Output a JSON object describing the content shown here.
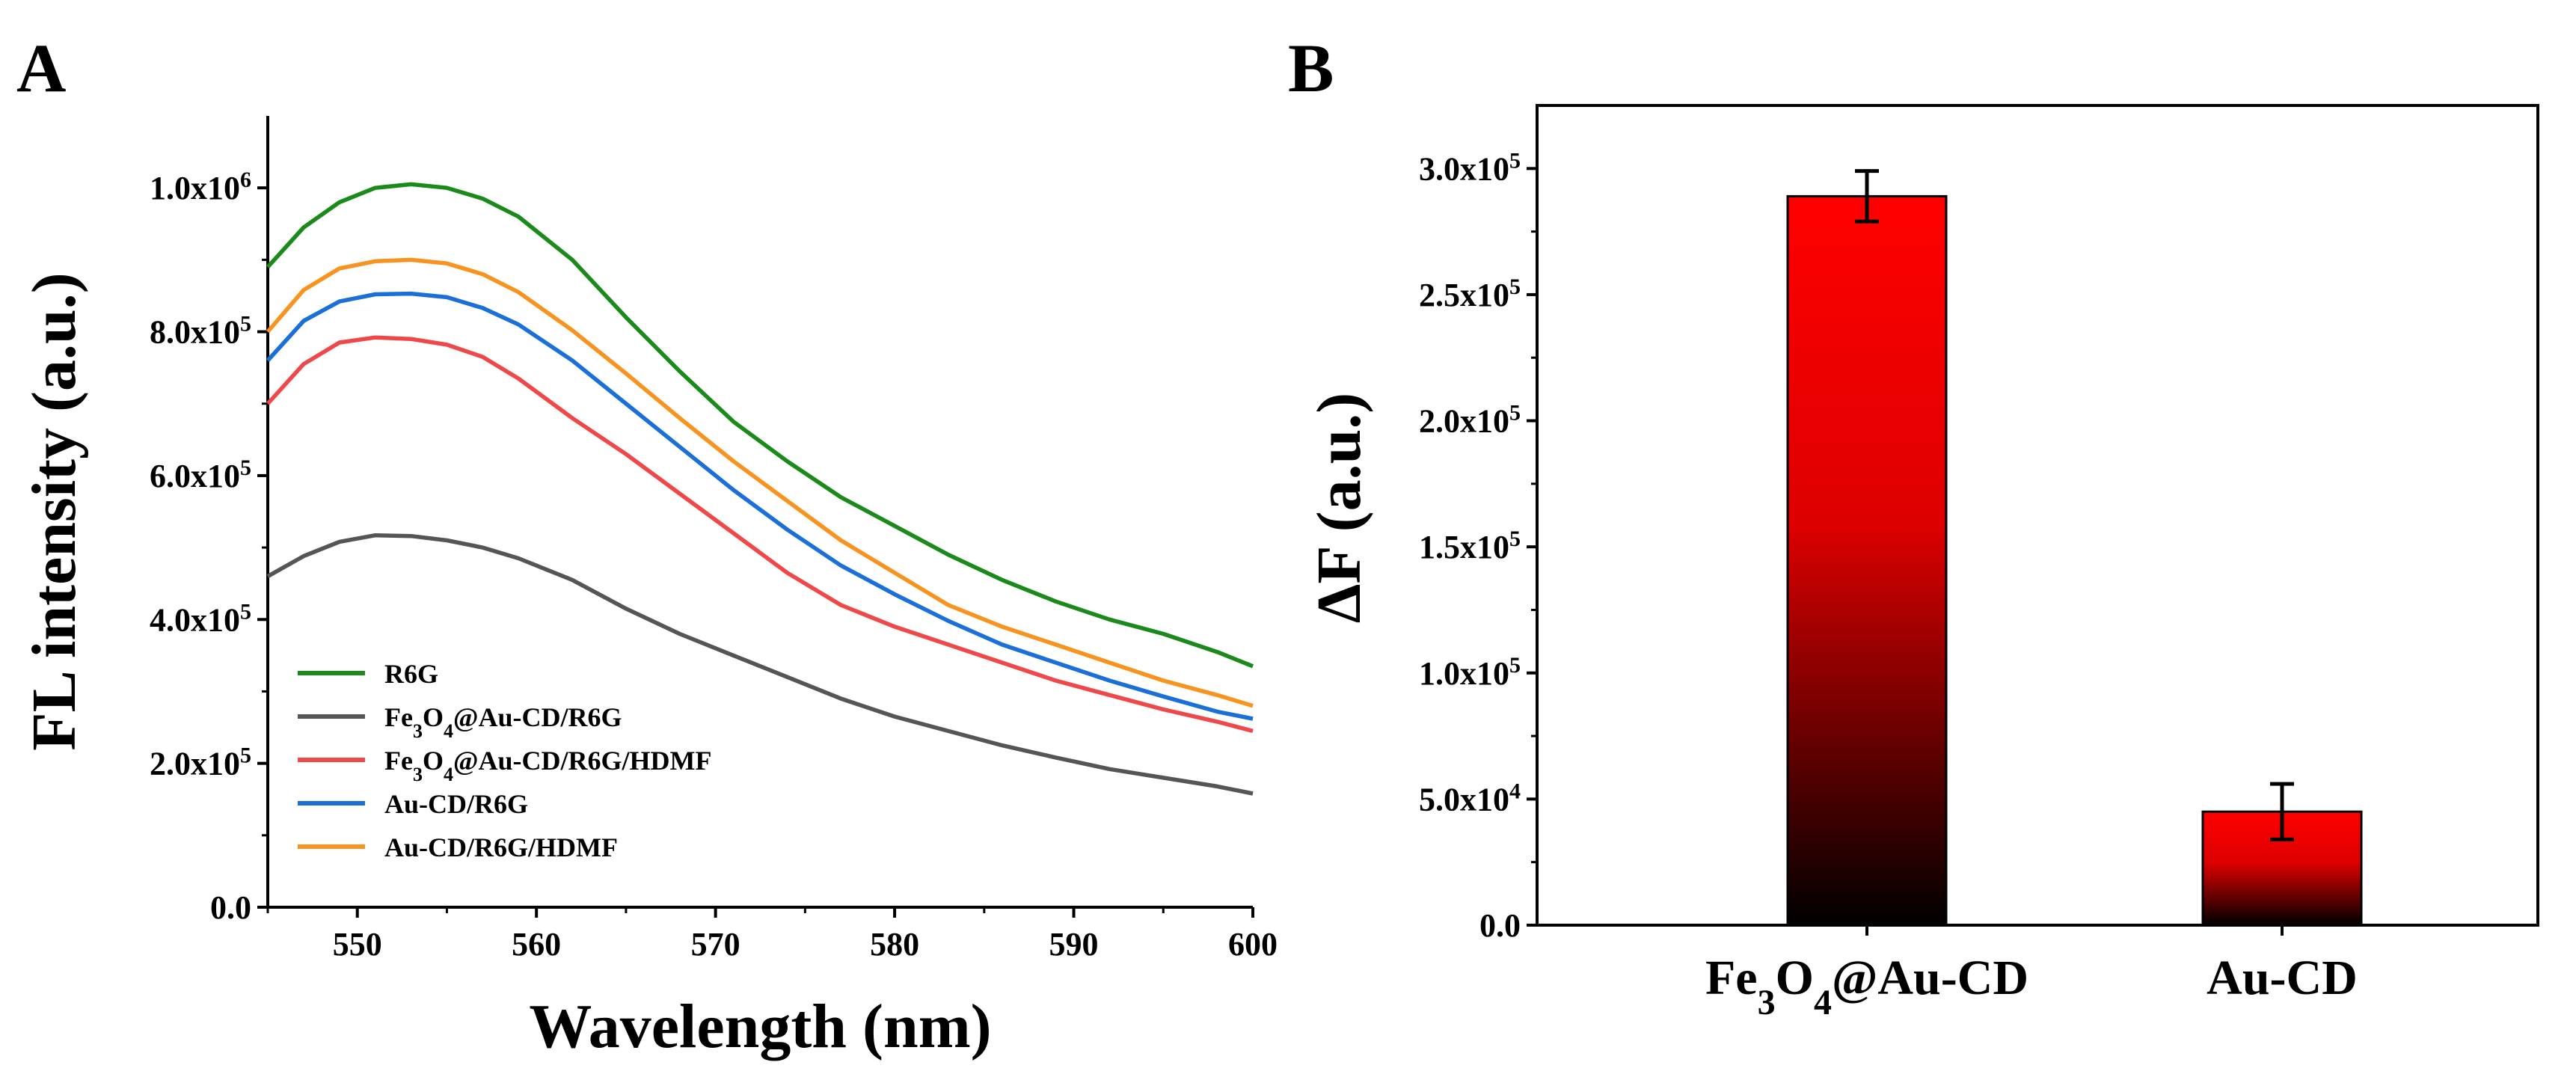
{
  "chart_data": [
    {
      "panel": "A",
      "type": "line",
      "xlabel": "Wavelength (nm)",
      "ylabel": "FL intensity (a.u.)",
      "xlim": [
        545,
        600
      ],
      "ylim": [
        0,
        1100000
      ],
      "xticks": [
        550,
        560,
        570,
        580,
        590,
        600
      ],
      "yticks": [
        {
          "value": 0,
          "mantissa": "0.0",
          "exp": ""
        },
        {
          "value": 200000,
          "mantissa": "2.0x10",
          "exp": "5"
        },
        {
          "value": 400000,
          "mantissa": "4.0x10",
          "exp": "5"
        },
        {
          "value": 600000,
          "mantissa": "6.0x10",
          "exp": "5"
        },
        {
          "value": 800000,
          "mantissa": "8.0x10",
          "exp": "5"
        },
        {
          "value": 1000000,
          "mantissa": "1.0x10",
          "exp": "6"
        }
      ],
      "legend_position": "bottom-left",
      "x": [
        545,
        547,
        549,
        551,
        553,
        555,
        557,
        559,
        562,
        565,
        568,
        571,
        574,
        577,
        580,
        583,
        586,
        589,
        592,
        595,
        598,
        600
      ],
      "series": [
        {
          "name": "R6G",
          "label_parts": [
            {
              "t": "R6G"
            }
          ],
          "color": "#1a8a1a",
          "values": [
            890000,
            945000,
            980000,
            1000000,
            1005000,
            1000000,
            985000,
            960000,
            900000,
            820000,
            745000,
            675000,
            620000,
            570000,
            530000,
            490000,
            455000,
            425000,
            400000,
            380000,
            355000,
            335000
          ]
        },
        {
          "name": "Fe3O4@Au-CD/R6G",
          "label_parts": [
            {
              "t": "Fe"
            },
            {
              "t": "3",
              "sub": true
            },
            {
              "t": "O"
            },
            {
              "t": "4",
              "sub": true
            },
            {
              "t": "@Au-CD/R6G"
            }
          ],
          "color": "#555555",
          "values": [
            460000,
            488000,
            508000,
            517000,
            516000,
            510000,
            500000,
            485000,
            455000,
            415000,
            380000,
            350000,
            320000,
            290000,
            265000,
            245000,
            225000,
            208000,
            192000,
            180000,
            168000,
            158000
          ]
        },
        {
          "name": "Fe3O4@Au-CD/R6G/HDMF",
          "label_parts": [
            {
              "t": "Fe"
            },
            {
              "t": "3",
              "sub": true
            },
            {
              "t": "O"
            },
            {
              "t": "4",
              "sub": true
            },
            {
              "t": "@Au-CD/R6G/HDMF"
            }
          ],
          "color": "#f04848",
          "values": [
            700000,
            755000,
            785000,
            792000,
            790000,
            782000,
            765000,
            735000,
            680000,
            630000,
            575000,
            520000,
            465000,
            420000,
            390000,
            365000,
            340000,
            315000,
            295000,
            275000,
            258000,
            245000
          ]
        },
        {
          "name": "Au-CD/R6G",
          "label_parts": [
            {
              "t": "Au-CD/R6G"
            }
          ],
          "color": "#1a6fd8",
          "values": [
            760000,
            815000,
            842000,
            852000,
            853000,
            848000,
            833000,
            810000,
            760000,
            700000,
            640000,
            580000,
            525000,
            475000,
            435000,
            398000,
            365000,
            340000,
            315000,
            293000,
            272000,
            262000
          ]
        },
        {
          "name": "Au-CD/R6G/HDMF",
          "label_parts": [
            {
              "t": "Au-CD/R6G/HDMF"
            }
          ],
          "color": "#f7931e",
          "values": [
            800000,
            858000,
            888000,
            898000,
            900000,
            895000,
            880000,
            855000,
            802000,
            742000,
            680000,
            620000,
            565000,
            510000,
            465000,
            420000,
            390000,
            365000,
            340000,
            315000,
            295000,
            280000
          ]
        }
      ]
    },
    {
      "panel": "B",
      "type": "bar",
      "xlabel": "",
      "ylabel": "ΔF (a.u.)",
      "ylim": [
        0,
        325000
      ],
      "yticks": [
        {
          "value": 0,
          "mantissa": "0.0",
          "exp": ""
        },
        {
          "value": 50000,
          "mantissa": "5.0x10",
          "exp": "4"
        },
        {
          "value": 100000,
          "mantissa": "1.0x10",
          "exp": "5"
        },
        {
          "value": 150000,
          "mantissa": "1.5x10",
          "exp": "5"
        },
        {
          "value": 200000,
          "mantissa": "2.0x10",
          "exp": "5"
        },
        {
          "value": 250000,
          "mantissa": "2.5x10",
          "exp": "5"
        },
        {
          "value": 300000,
          "mantissa": "3.0x10",
          "exp": "5"
        }
      ],
      "categories": [
        "Fe3O4@Au-CD",
        "Au-CD"
      ],
      "category_parts": [
        [
          {
            "t": "Fe"
          },
          {
            "t": "3",
            "sub": true
          },
          {
            "t": "O"
          },
          {
            "t": "4",
            "sub": true
          },
          {
            "t": "@Au-CD"
          }
        ],
        [
          {
            "t": "Au-CD"
          }
        ]
      ],
      "values": [
        289000,
        45000
      ],
      "errors": [
        10000,
        11000
      ],
      "bar_color_top": "#ff0000",
      "bar_color_bottom": "#000000"
    }
  ],
  "panel_labels": {
    "a": "A",
    "b": "B"
  }
}
